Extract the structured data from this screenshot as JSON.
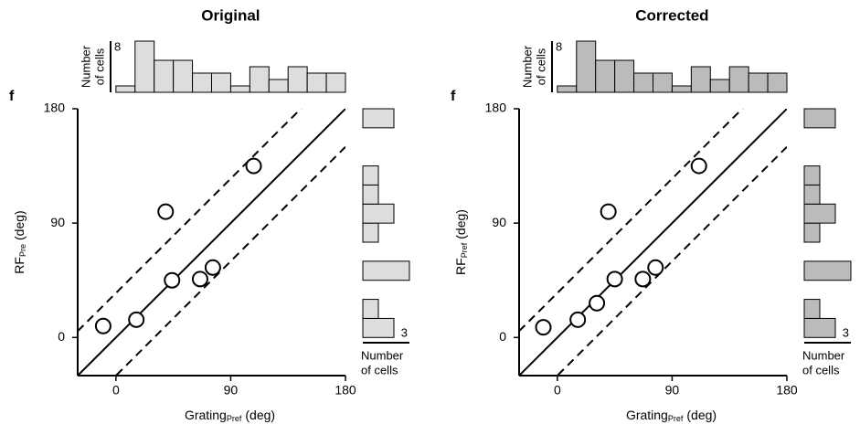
{
  "chart_data": [
    {
      "type": "scatter",
      "title": "Original",
      "panel_label": "f",
      "xlabel": {
        "text": "Grating",
        "sub": "Pref",
        "unit": "(deg)"
      },
      "ylabel": {
        "text": "RF",
        "sub": "Pre",
        "unit": "(deg)"
      },
      "x": [
        -10,
        16,
        39,
        44,
        66,
        76,
        108
      ],
      "y": [
        9,
        14,
        99,
        45,
        46,
        55,
        135
      ],
      "xlim": [
        -30,
        180
      ],
      "ylim": [
        -30,
        180
      ],
      "xticks": [
        0,
        90,
        180
      ],
      "yticks": [
        0,
        90,
        180
      ],
      "diagonals": [
        0,
        35,
        -30
      ],
      "marker_color": "#000000",
      "top_hist": {
        "bins": [
          0,
          15,
          30,
          45,
          60,
          75,
          90,
          105,
          120,
          135,
          150,
          165,
          180
        ],
        "counts": [
          1,
          8,
          5,
          5,
          3,
          3,
          1,
          4,
          2,
          4,
          3,
          3
        ],
        "scale": 8,
        "label": [
          "Number",
          "of cells"
        ],
        "color": "#dddddd"
      },
      "side_hist": {
        "bins": [
          0,
          15,
          30,
          45,
          60,
          75,
          90,
          105,
          120,
          135,
          150,
          165,
          180
        ],
        "counts": [
          2,
          1,
          0,
          3,
          0,
          1,
          2,
          1,
          1,
          0,
          0,
          2
        ],
        "scale": 3,
        "label": [
          "Number",
          "of cells"
        ],
        "color": "#dddddd"
      }
    },
    {
      "type": "scatter",
      "title": "Corrected",
      "panel_label": "f",
      "xlabel": {
        "text": "Grating",
        "sub": "Pref",
        "unit": "(deg)"
      },
      "ylabel": {
        "text": "RF",
        "sub": "Pref",
        "unit": "(deg)"
      },
      "x": [
        -11,
        16,
        31,
        40,
        45,
        67,
        77,
        111
      ],
      "y": [
        8,
        14,
        27,
        99,
        46,
        46,
        55,
        135
      ],
      "xlim": [
        -30,
        180
      ],
      "ylim": [
        -30,
        180
      ],
      "xticks": [
        0,
        90,
        180
      ],
      "yticks": [
        0,
        90,
        180
      ],
      "diagonals": [
        0,
        35,
        -30
      ],
      "marker_color": "#000000",
      "top_hist": {
        "bins": [
          0,
          15,
          30,
          45,
          60,
          75,
          90,
          105,
          120,
          135,
          150,
          165,
          180
        ],
        "counts": [
          1,
          8,
          5,
          5,
          3,
          3,
          1,
          4,
          2,
          4,
          3,
          3
        ],
        "scale": 8,
        "label": [
          "Number",
          "of cells"
        ],
        "color": "#bbbbbb"
      },
      "side_hist": {
        "bins": [
          0,
          15,
          30,
          45,
          60,
          75,
          90,
          105,
          120,
          135,
          150,
          165,
          180
        ],
        "counts": [
          2,
          1,
          0,
          3,
          0,
          1,
          2,
          1,
          1,
          0,
          0,
          2
        ],
        "scale": 3,
        "label": [
          "Number",
          "of cells"
        ],
        "color": "#bbbbbb"
      }
    }
  ]
}
